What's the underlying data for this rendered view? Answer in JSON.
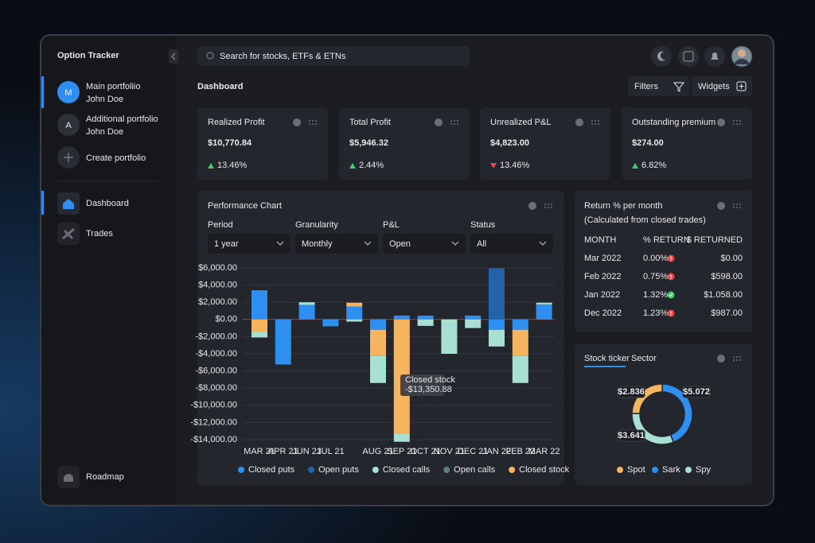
{
  "app": {
    "brand": "Option Tracker"
  },
  "sidebar": {
    "portfolios": [
      {
        "initial": "M",
        "name": "Main portfoliio",
        "owner": "John Doe"
      },
      {
        "initial": "A",
        "name": "Additional portfolio",
        "owner": "John Doe"
      }
    ],
    "create": "Create portfolio",
    "nav": [
      "Dashboard",
      "Trades"
    ],
    "footer": "Roadmap"
  },
  "topbar": {
    "search_placeholder": "Search for stocks, ETFs & ETNs"
  },
  "header": {
    "title": "Dashboard",
    "buttons": [
      "Filters",
      "Widgets"
    ]
  },
  "kpis": [
    {
      "label": "Realized Profit",
      "value": "$10,770.84",
      "change": "13.46%",
      "direction": "up"
    },
    {
      "label": "Total Profit",
      "value": "$5,946.32",
      "change": "2.44%",
      "direction": "up"
    },
    {
      "label": "Unrealized P&L",
      "value": "$4,823.00",
      "change": "13.46%",
      "direction": "down"
    },
    {
      "label": "Outstanding premium",
      "value": "$274.00",
      "change": "6.82%",
      "direction": "up"
    }
  ],
  "performance": {
    "title": "Performance Chart",
    "filters": [
      {
        "label": "Period",
        "value": "1 year"
      },
      {
        "label": "Granularity",
        "value": "Monthly"
      },
      {
        "label": "P&L",
        "value": "Open"
      },
      {
        "label": "Status",
        "value": "All"
      }
    ],
    "chart": {
      "type": "bar",
      "stacked": true,
      "categories": [
        "MAR 21",
        "APR 21",
        "JUN 21",
        "JUL 21",
        null,
        "AUG 21",
        "SEP 21",
        "OCT 21",
        "NOV 21",
        "DEC 21",
        "JAN 22",
        "FEB 22",
        "MAR 22"
      ],
      "series": [
        {
          "name": "Closed puts",
          "color": "#2e8ff0",
          "values": [
            3400,
            -5250,
            1700,
            -800,
            1500,
            -1200,
            450,
            450,
            0,
            450,
            -1200,
            -1200,
            1750
          ]
        },
        {
          "name": "Open puts",
          "color": "#2563a8",
          "values": [
            0,
            0,
            0,
            0,
            0,
            0,
            0,
            0,
            0,
            0,
            5950,
            0,
            0
          ]
        },
        {
          "name": "Closed calls",
          "color": "#a8e0d4",
          "values": [
            -600,
            0,
            300,
            0,
            -250,
            -3150,
            -900,
            -750,
            -4000,
            -1000,
            -1950,
            -3150,
            200
          ]
        },
        {
          "name": "Open calls",
          "color": "#5e7f80",
          "values": [
            0,
            0,
            0,
            0,
            0,
            0,
            0,
            0,
            0,
            0,
            0,
            0,
            0
          ]
        },
        {
          "name": "Closed stock",
          "color": "#f5b55e",
          "values": [
            -1500,
            0,
            0,
            0,
            450,
            -3050,
            -13350.88,
            0,
            0,
            0,
            0,
            -3050,
            0
          ]
        }
      ],
      "ylim": [
        -14000,
        6000
      ],
      "yticks": [
        {
          "value": 6000,
          "label": "$6,000.00"
        },
        {
          "value": 4000,
          "label": "$4,000.00"
        },
        {
          "value": 2000,
          "label": "$2,000.00"
        },
        {
          "value": 0,
          "label": "$0.00"
        },
        {
          "value": -2000,
          "label": "-$2,000.00"
        },
        {
          "value": -4000,
          "label": "-$4,000.00"
        },
        {
          "value": -6000,
          "label": "-$6,000.00"
        },
        {
          "value": -8000,
          "label": "-$8,000.00"
        },
        {
          "value": -10000,
          "label": "-$10,000.00"
        },
        {
          "value": -12000,
          "label": "-$12,000.00"
        },
        {
          "value": -14000,
          "label": "-$14,000.00"
        }
      ],
      "grid": true,
      "tooltip": {
        "title": "Closed stock",
        "label": "-$13,350.88"
      }
    }
  },
  "returns": {
    "title": "Return % per month",
    "subtitle": "(Calculated from closed trades)",
    "columns": [
      "MONTH",
      "% RETURN",
      "$ RETURNED"
    ],
    "rows": [
      [
        "Mar 2022",
        "0.00%",
        "$0.00"
      ],
      [
        "Feb 2022",
        "0.75%",
        "$598.00"
      ],
      [
        "Jan 2022",
        "1.32%",
        "$1.058.00"
      ],
      [
        "Dec 2022",
        "1.23%",
        "$987.00"
      ]
    ],
    "status": [
      "warn",
      "warn",
      "ok",
      "warn"
    ]
  },
  "ticker": {
    "tabs": [
      "Stock ticker",
      "Sector"
    ],
    "chart": {
      "type": "pie",
      "categories": [
        "Spot",
        "Sark",
        "Spy"
      ],
      "values": [
        2.836,
        5.072,
        3.641
      ],
      "value_labels": [
        "$2.836",
        "$5.072",
        "$3.641"
      ],
      "colors": [
        "#f5b55e",
        "#2e8ff0",
        "#a8e0d4"
      ]
    }
  }
}
